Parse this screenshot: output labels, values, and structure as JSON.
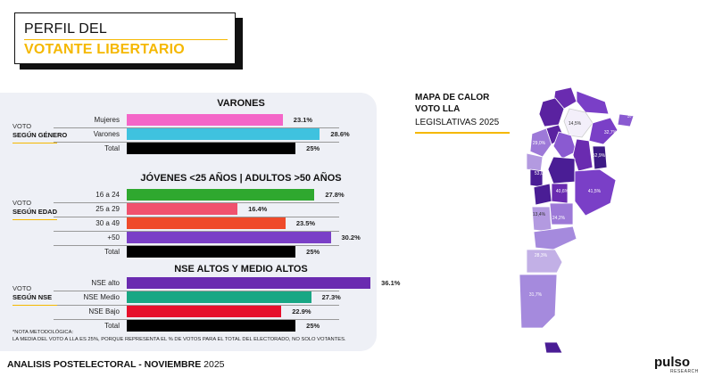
{
  "header": {
    "title_line1": "PERFIL DEL",
    "title_line2": "VOTANTE LIBERTARIO"
  },
  "colors": {
    "accent": "#f5b800",
    "mujeres": "#f466c8",
    "varones": "#3fc2df",
    "total": "#000000",
    "16a24": "#2fa82f",
    "25a29": "#f0526e",
    "30a49": "#ef4a2a",
    "50plus": "#7a3fc7",
    "nse_alto": "#6a2bb0",
    "nse_medio": "#18a784",
    "nse_bajo": "#e6102c"
  },
  "side_labels": {
    "genero": {
      "l1": "VOTO",
      "l2": "SEGÚN GÉNERO"
    },
    "edad": {
      "l1": "VOTO",
      "l2": "SEGÚN EDAD"
    },
    "nse": {
      "l1": "VOTO",
      "l2": "SEGÚN NSE"
    }
  },
  "chart_data": [
    {
      "type": "bar",
      "title": "VARONES",
      "categories": [
        "Mujeres",
        "Varones",
        "Total"
      ],
      "values": [
        23.1,
        28.6,
        25
      ],
      "value_labels": [
        "23.1%",
        "28.6%",
        "25%"
      ],
      "ylim": [
        0,
        40
      ]
    },
    {
      "type": "bar",
      "title": "JÓVENES <25  AÑOS  |    ADULTOS >50 AÑOS",
      "categories": [
        "16 a 24",
        "25 a 29",
        "30 a 49",
        "+50",
        "Total"
      ],
      "values": [
        27.8,
        16.4,
        23.5,
        30.2,
        25
      ],
      "value_labels": [
        "27.8%",
        "16.4%",
        "23.5%",
        "30.2%",
        "25%"
      ],
      "ylim": [
        0,
        40
      ]
    },
    {
      "type": "bar",
      "title": "NSE ALTOS Y MEDIO ALTOS",
      "categories": [
        "NSE alto",
        "NSE Medio",
        "NSE Bajo",
        "Total"
      ],
      "values": [
        36.1,
        27.3,
        22.9,
        25
      ],
      "value_labels": [
        "36.1%",
        "27.3%",
        "22.9%",
        "25%"
      ],
      "ylim": [
        0,
        40
      ]
    },
    {
      "type": "heatmap",
      "title": "MAPA DE CALOR VOTO LLA LEGISLATIVAS 2025",
      "regions": [
        {
          "value": 14.5,
          "label": "14,5%"
        },
        {
          "value": 32.7,
          "label": "32,7%"
        },
        {
          "value": 37.1,
          "label": "37,1%"
        },
        {
          "value": 29.0,
          "label": "29,0%"
        },
        {
          "value": 53.0,
          "label": "53,0%"
        },
        {
          "value": 40.6,
          "label": "40,6%"
        },
        {
          "value": 41.5,
          "label": "41,5%"
        },
        {
          "value": 52.9,
          "label": "52,9%"
        },
        {
          "value": 13.4,
          "label": "13,4%"
        },
        {
          "value": 24.2,
          "label": "24,2%"
        },
        {
          "value": 28.3,
          "label": "28,3%"
        },
        {
          "value": 31.7,
          "label": "31,7%"
        }
      ]
    }
  ],
  "note": {
    "line1": "*NOTA METODOLÓGICA:",
    "line2": "LA MEDIA DEL VOTO A LLA ES 25%, PORQUE REPRESENTA EL % DE VOTOS PARA EL TOTAL DEL ELECTORADO, NO SOLO VOTANTES."
  },
  "map": {
    "title_l1": "MAPA DE CALOR",
    "title_l2": "VOTO LLA",
    "subtitle": "LEGISLATIVAS 2025"
  },
  "footer": {
    "bold": "ANALISIS POSTELECTORAL - ",
    "bold2": "NOVIEMBRE",
    "rest": " 2025"
  },
  "logo": {
    "text": "pulso",
    "sub": "RESEARCH"
  }
}
